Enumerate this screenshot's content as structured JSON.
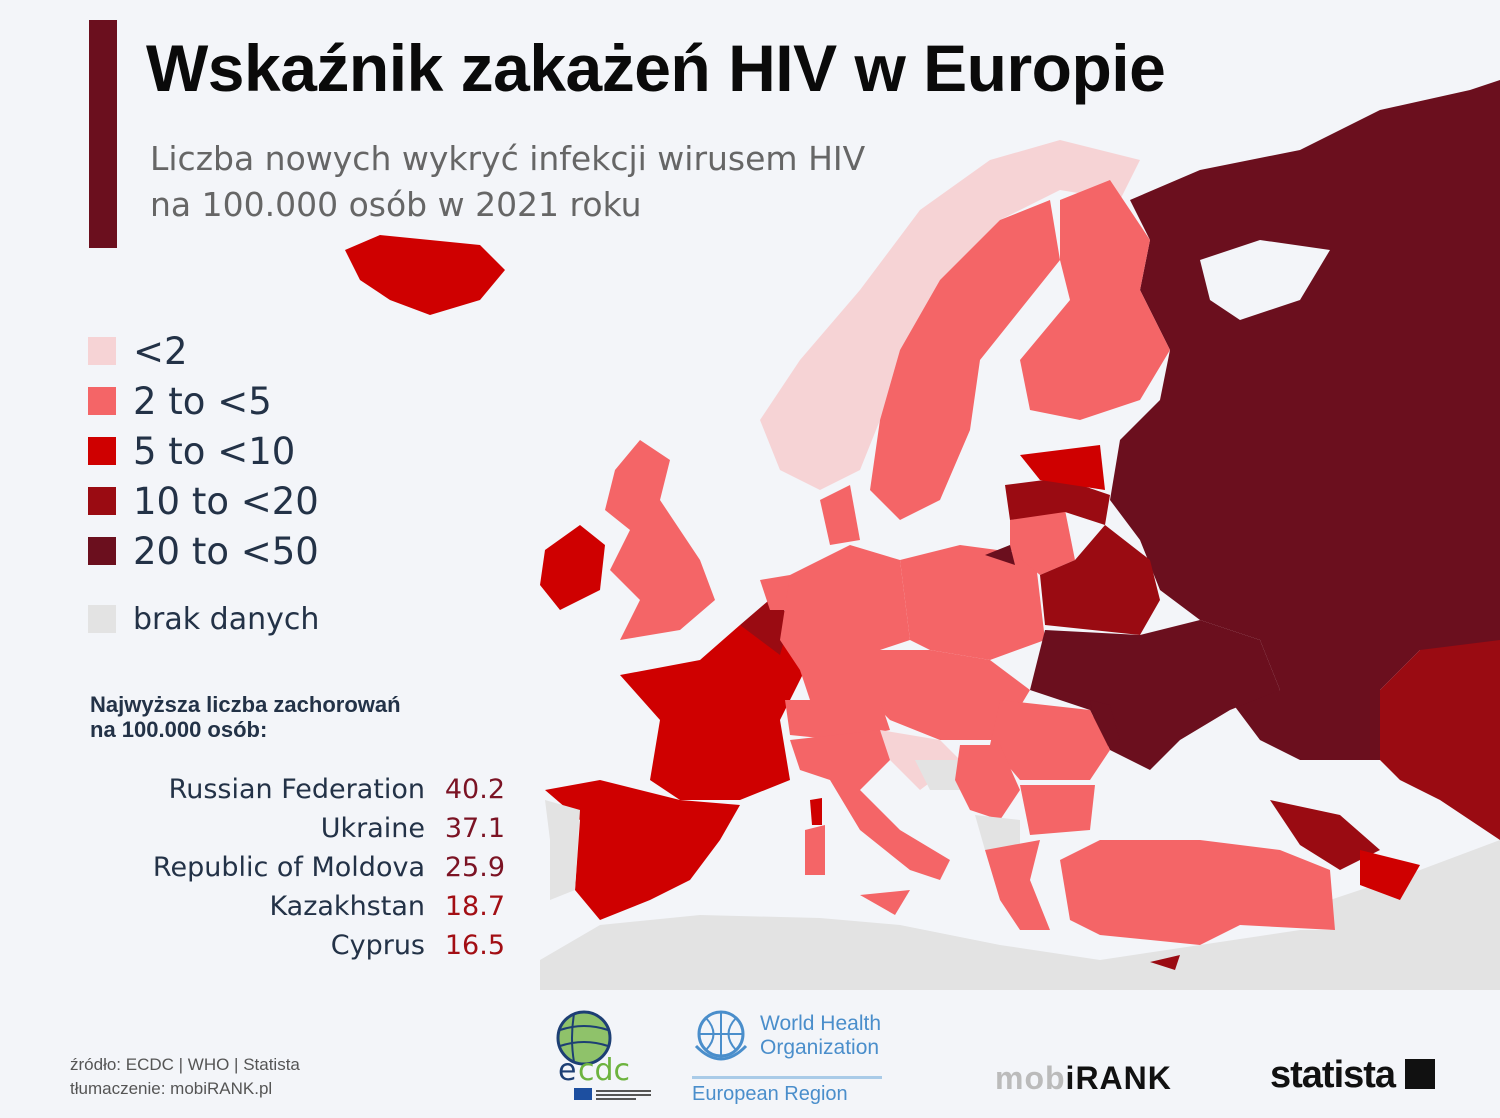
{
  "header": {
    "title": "Wskaźnik zakażeń HIV w Europie",
    "subtitle_line1": "Liczba nowych wykryć infekcji wirusem HIV",
    "subtitle_line2": "na 100.000 osób w 2021 roku"
  },
  "legend": [
    {
      "label": "<2",
      "color": "#f6d3d5"
    },
    {
      "label": "2 to <5",
      "color": "#f46567"
    },
    {
      "label": "5 to <10",
      "color": "#cf0000"
    },
    {
      "label": "10 to <20",
      "color": "#9a0b12"
    },
    {
      "label": "20 to <50",
      "color": "#6b0f1e"
    },
    {
      "label": "brak danych",
      "color": "#e3e3e3"
    }
  ],
  "top": {
    "heading_line1": "Najwyższa liczba zachorowań",
    "heading_line2": "na 100.000 osób:",
    "rows": [
      {
        "country": "Russian Federation",
        "value": "40.2",
        "color": "#7b1324"
      },
      {
        "country": "Ukraine",
        "value": "37.1",
        "color": "#7b1324"
      },
      {
        "country": "Republic of Moldova",
        "value": "25.9",
        "color": "#7b1324"
      },
      {
        "country": "Kazakhstan",
        "value": "18.7",
        "color": "#a20e14"
      },
      {
        "country": "Cyprus",
        "value": "16.5",
        "color": "#a20e14"
      }
    ]
  },
  "footer": {
    "source": "źródło: ECDC | WHO | Statista",
    "translation": "tłumaczenie: mobiRANK.pl",
    "ecdc_logo": "ecdc",
    "who_line1": "World Health",
    "who_line2": "Organization",
    "who_region": "European Region",
    "mobirank_a": "mob",
    "mobirank_b": "iRANK",
    "statista": "statista"
  }
}
